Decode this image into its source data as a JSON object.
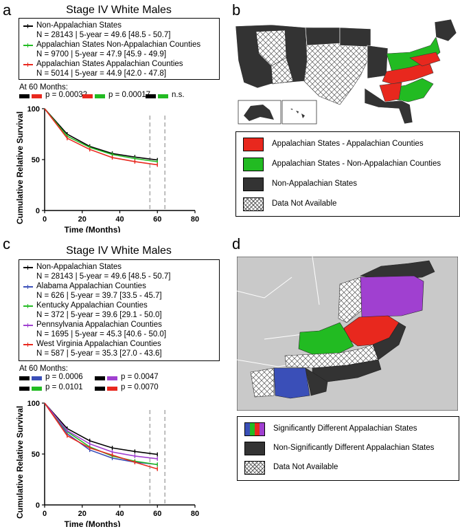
{
  "panels": {
    "a": {
      "letter": "a",
      "title": "Stage IV White Males",
      "legend": [
        {
          "name": "Non-Appalachian States",
          "stats": "N = 28143 | 5-year = 49.6 [48.5 - 50.7]",
          "color": "#000000"
        },
        {
          "name": "Appalachian States Non-Appalachian Counties",
          "stats": "N = 9700 | 5-year = 47.9 [45.9 - 49.9]",
          "color": "#22bb22"
        },
        {
          "name": "Appalachian States Appalachian Counties",
          "stats": "N = 5014 | 5-year = 44.9 [42.0 - 47.8]",
          "color": "#e8281e"
        }
      ],
      "at60_label": "At 60 Months:",
      "comparisons": [
        {
          "c1": "#000000",
          "c2": "#e8281e",
          "label": "p = 0.00032"
        },
        {
          "c1": "#e8281e",
          "c2": "#22bb22",
          "label": "p = 0.00017"
        },
        {
          "c1": "#000000",
          "c2": "#22bb22",
          "label": "n.s."
        }
      ]
    },
    "b": {
      "letter": "b",
      "map_legend": [
        {
          "label": "Appalachian States - Appalachian Counties",
          "color": "#e8281e"
        },
        {
          "label": "Appalachian States - Non-Appalachian Counties",
          "color": "#22bb22"
        },
        {
          "label": "Non-Appalachian States",
          "color": "#333333"
        },
        {
          "label": "Data Not Available",
          "color": "hatch"
        }
      ]
    },
    "c": {
      "letter": "c",
      "title": "Stage IV White Males",
      "legend": [
        {
          "name": "Non-Appalachian States",
          "stats": "N = 28143 | 5-year = 49.6 [48.5 - 50.7]",
          "color": "#000000"
        },
        {
          "name": "Alabama Appalachian Counties",
          "stats": "N = 626 | 5-year = 39.7 [33.5 - 45.7]",
          "color": "#3a4fb8"
        },
        {
          "name": "Kentucky Appalachian Counties",
          "stats": "N = 372 | 5-year = 39.6 [29.1 - 50.0]",
          "color": "#22bb22"
        },
        {
          "name": "Pennsylvania Appalachian Counties",
          "stats": "N = 1695 | 5-year = 45.3 [40.6 - 50.0]",
          "color": "#a040d0"
        },
        {
          "name": "West Virginia Appalachian Counties",
          "stats": "N = 587 | 5-year = 35.3 [27.0 - 43.6]",
          "color": "#e8281e"
        }
      ],
      "at60_label": "At 60 Months:",
      "comparisons": [
        {
          "c1": "#000000",
          "c2": "#3a4fb8",
          "label": "p = 0.0006"
        },
        {
          "c1": "#000000",
          "c2": "#a040d0",
          "label": "p = 0.0047"
        },
        {
          "c1": "#000000",
          "c2": "#22bb22",
          "label": "p = 0.0101"
        },
        {
          "c1": "#000000",
          "c2": "#e8281e",
          "label": "p = 0.0070"
        }
      ]
    },
    "d": {
      "letter": "d",
      "map_legend": [
        {
          "label": "Significantly Different Appalachian States",
          "color": "multi"
        },
        {
          "label": "Non-Significantly Different Appalachian States",
          "color": "#333333"
        },
        {
          "label": "Data Not Available",
          "color": "hatch"
        }
      ]
    }
  },
  "chart_data": [
    {
      "type": "line",
      "title": "Stage IV White Males",
      "xlabel": "Time (Months)",
      "ylabel": "Cumulative Relative Survival",
      "xlim": [
        0,
        80
      ],
      "ylim": [
        0,
        100
      ],
      "xticks": [
        0,
        20,
        40,
        60,
        80
      ],
      "yticks": [
        0,
        50,
        100
      ],
      "x": [
        0,
        12,
        24,
        36,
        48,
        60
      ],
      "series": [
        {
          "name": "Non-Appalachian States",
          "color": "#000000",
          "values": [
            100,
            75,
            63,
            56,
            52.5,
            49.6
          ]
        },
        {
          "name": "Appalachian States Non-Appalachian Counties",
          "color": "#22bb22",
          "values": [
            100,
            73,
            62,
            55,
            51,
            47.9
          ]
        },
        {
          "name": "Appalachian States Appalachian Counties",
          "color": "#e8281e",
          "values": [
            100,
            71,
            60,
            52,
            48,
            44.9
          ]
        }
      ],
      "dashed_vlines": [
        56,
        64
      ]
    },
    {
      "type": "line",
      "title": "Stage IV White Males",
      "xlabel": "Time (Months)",
      "ylabel": "Cumulative Relative Survival",
      "xlim": [
        0,
        80
      ],
      "ylim": [
        0,
        100
      ],
      "xticks": [
        0,
        20,
        40,
        60,
        80
      ],
      "yticks": [
        0,
        50,
        100
      ],
      "x": [
        0,
        12,
        24,
        36,
        48,
        60
      ],
      "series": [
        {
          "name": "Non-Appalachian States",
          "color": "#000000",
          "values": [
            100,
            75,
            63,
            56,
            52.5,
            49.6
          ]
        },
        {
          "name": "Alabama Appalachian Counties",
          "color": "#3a4fb8",
          "values": [
            100,
            70,
            54,
            46,
            42,
            39.7
          ]
        },
        {
          "name": "Kentucky Appalachian Counties",
          "color": "#22bb22",
          "values": [
            100,
            72,
            57,
            48,
            43,
            39.6
          ]
        },
        {
          "name": "Pennsylvania Appalachian Counties",
          "color": "#a040d0",
          "values": [
            100,
            73,
            60,
            52,
            48,
            45.3
          ]
        },
        {
          "name": "West Virginia Appalachian Counties",
          "color": "#e8281e",
          "values": [
            100,
            68,
            56,
            49,
            42,
            35.3
          ]
        }
      ],
      "dashed_vlines": [
        56,
        64
      ]
    }
  ]
}
